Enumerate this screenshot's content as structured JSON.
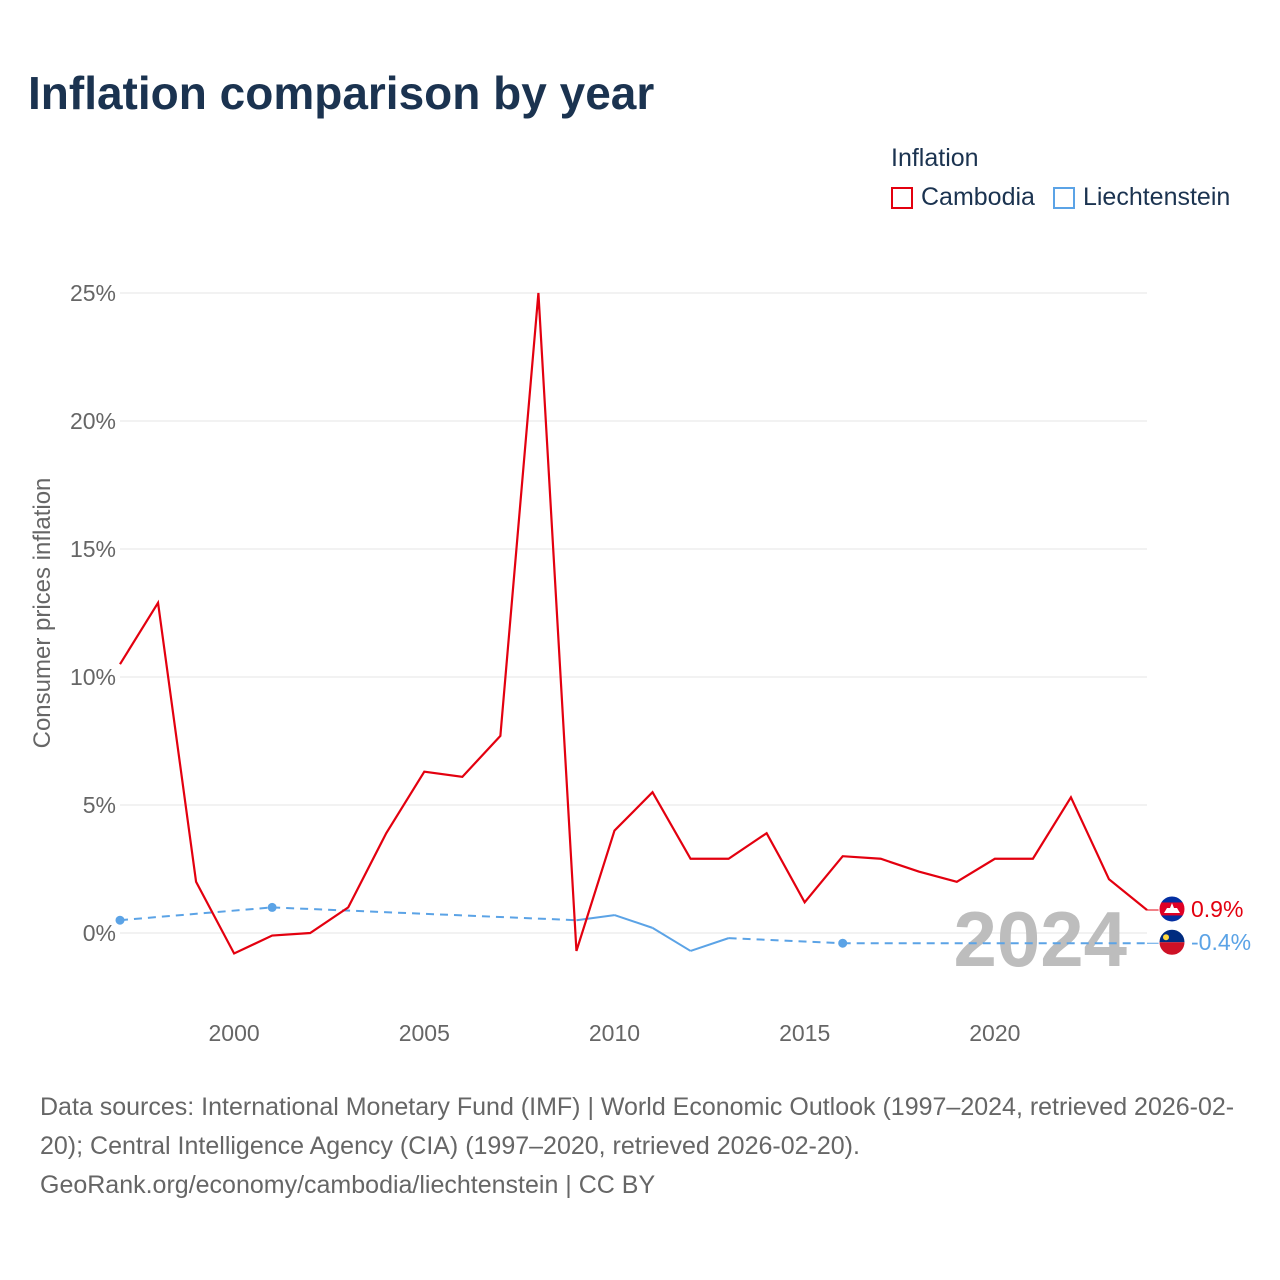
{
  "title": "Inflation comparison by year",
  "legend": {
    "title": "Inflation",
    "items": [
      {
        "label": "Cambodia",
        "color": "#e3000f"
      },
      {
        "label": "Liechtenstein",
        "color": "#5ba3e6"
      }
    ]
  },
  "chart_data": {
    "type": "line",
    "title": "Inflation comparison by year",
    "xlabel": "",
    "ylabel": "Consumer prices inflation",
    "xlim": [
      1997,
      2024
    ],
    "ylim": [
      -3,
      25
    ],
    "x_ticks": [
      2000,
      2005,
      2010,
      2015,
      2020
    ],
    "y_ticks": [
      0,
      5,
      10,
      15,
      20,
      25
    ],
    "y_tick_labels": [
      "0%",
      "5%",
      "10%",
      "15%",
      "20%",
      "25%"
    ],
    "grid": true,
    "year_watermark": "2024",
    "series": [
      {
        "name": "Cambodia",
        "color": "#e3000f",
        "end_label": "0.9%",
        "points": [
          [
            1997,
            10.5
          ],
          [
            1998,
            12.9
          ],
          [
            1999,
            2.0
          ],
          [
            2000,
            -0.8
          ],
          [
            2001,
            -0.1
          ],
          [
            2002,
            0.0
          ],
          [
            2003,
            1.0
          ],
          [
            2004,
            3.9
          ],
          [
            2005,
            6.3
          ],
          [
            2006,
            6.1
          ],
          [
            2007,
            7.7
          ],
          [
            2008,
            25.0
          ],
          [
            2009,
            -0.7
          ],
          [
            2010,
            4.0
          ],
          [
            2011,
            5.5
          ],
          [
            2012,
            2.9
          ],
          [
            2013,
            2.9
          ],
          [
            2014,
            3.9
          ],
          [
            2015,
            1.2
          ],
          [
            2016,
            3.0
          ],
          [
            2017,
            2.9
          ],
          [
            2018,
            2.4
          ],
          [
            2019,
            2.0
          ],
          [
            2020,
            2.9
          ],
          [
            2021,
            2.9
          ],
          [
            2022,
            5.3
          ],
          [
            2023,
            2.1
          ],
          [
            2024,
            0.9
          ]
        ]
      },
      {
        "name": "Liechtenstein",
        "color": "#5ba3e6",
        "end_label": "-0.4%",
        "points": [
          [
            1997,
            0.5
          ],
          [
            2001,
            1.0
          ],
          [
            2009,
            0.5
          ],
          [
            2010,
            0.7
          ],
          [
            2011,
            0.2
          ],
          [
            2012,
            -0.7
          ],
          [
            2013,
            -0.2
          ],
          [
            2016,
            -0.4
          ],
          [
            2024,
            -0.4
          ]
        ],
        "dashed_segments": [
          [
            1997,
            2009
          ],
          [
            2013,
            2024
          ]
        ],
        "markers": [
          1997,
          2001,
          2016
        ]
      }
    ]
  },
  "footer": {
    "line1": "Data sources: International Monetary Fund (IMF) | World Economic Outlook (1997–2024, retrieved 2026-02-20); Central Intelligence Agency (CIA) (1997–2020, retrieved 2026-02-20).",
    "line2": "GeoRank.org/economy/cambodia/liechtenstein | CC BY"
  }
}
